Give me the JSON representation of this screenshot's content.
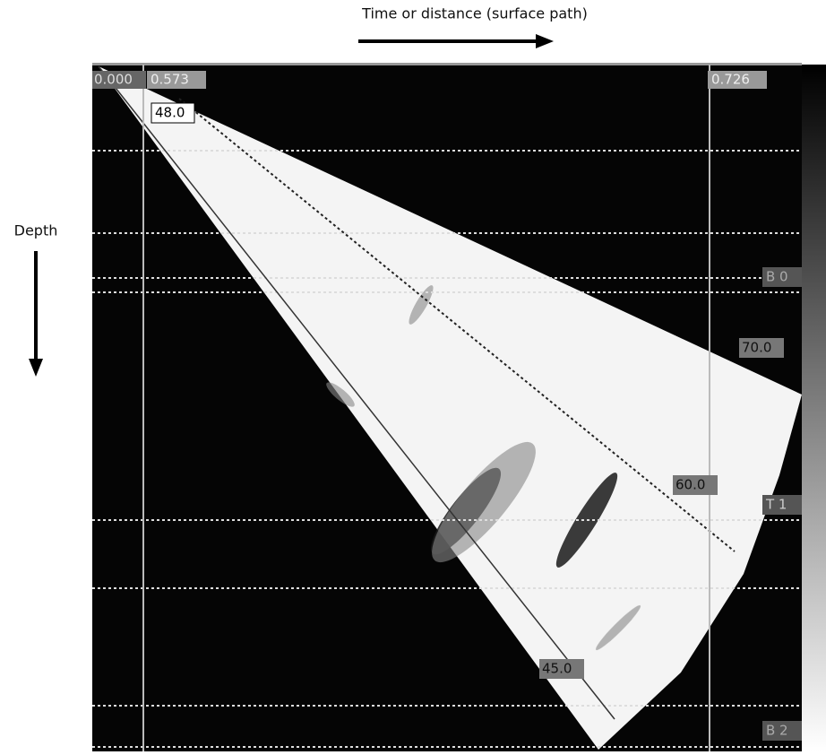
{
  "header": {
    "x_axis_label": "Time or distance (surface path)",
    "y_axis_label": "Depth"
  },
  "cursors": [
    "0.000",
    "0.573",
    "0.726"
  ],
  "angle_labels": [
    "48.0",
    "70.0",
    "60.0",
    "45.0"
  ],
  "gate_labels": [
    "B 0",
    "T 1",
    "B 2"
  ]
}
